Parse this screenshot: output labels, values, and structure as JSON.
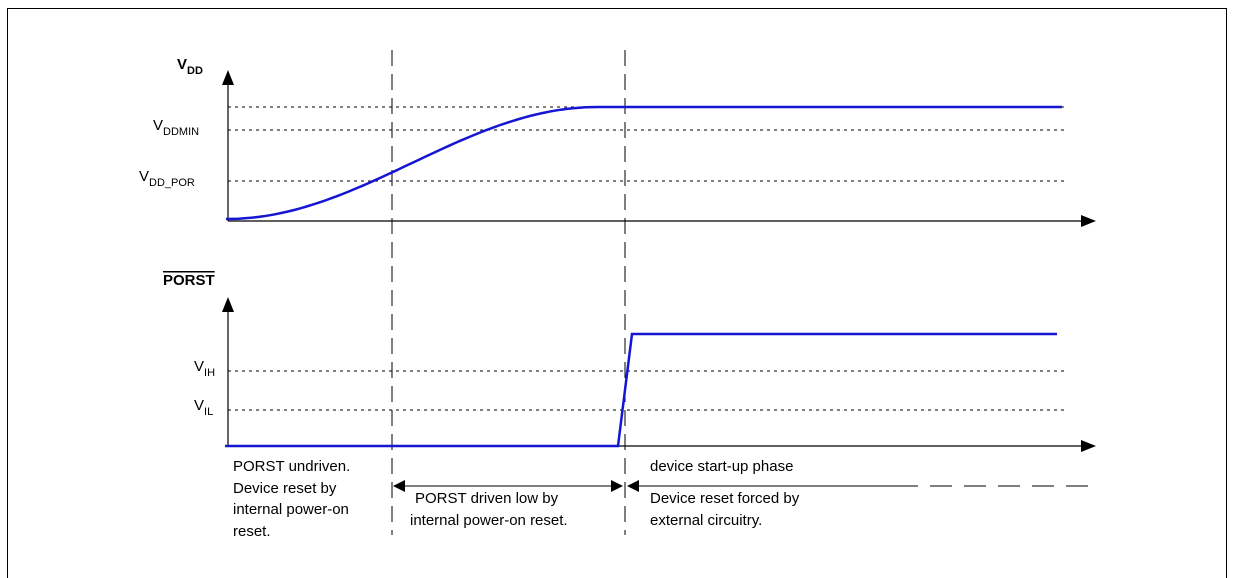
{
  "vdd_axis": {
    "title": "V",
    "title_sub": "DD",
    "levels": [
      {
        "name": "V",
        "sub": "DDMIN"
      },
      {
        "name": "V",
        "sub": "DD_POR"
      }
    ]
  },
  "porst_axis": {
    "title": "PORST",
    "levels": [
      {
        "name": "V",
        "sub": "IH"
      },
      {
        "name": "V",
        "sub": "IL"
      }
    ]
  },
  "phases": {
    "phase1": [
      "PORST undriven.",
      "Device reset by",
      "internal power-on",
      "reset."
    ],
    "phase2": [
      "PORST driven low by",
      "internal power-on reset."
    ],
    "phase3_top": "device start-up phase",
    "phase3": [
      "Device reset forced by",
      "external circuitry."
    ]
  },
  "colors": {
    "signal": "#1515d4",
    "lines": "#000000",
    "background": "#ffffff"
  }
}
